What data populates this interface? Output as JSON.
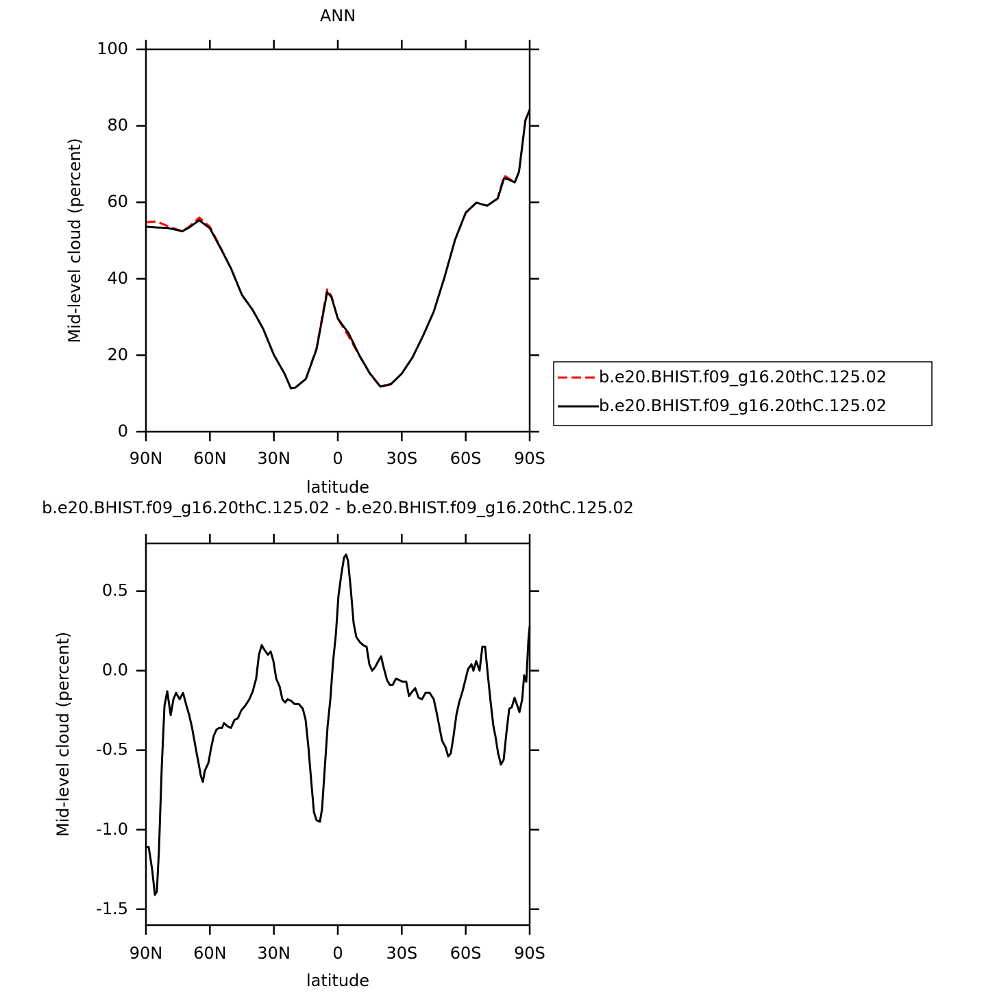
{
  "chart_data": [
    {
      "type": "line",
      "title": "ANN",
      "xlabel": "latitude",
      "ylabel": "Mid-level cloud (percent)",
      "x": [
        90,
        85,
        80,
        75,
        73,
        70,
        65,
        60,
        55,
        50,
        45,
        40,
        35,
        30,
        25,
        22,
        20,
        15,
        10,
        5,
        3,
        0,
        -5,
        -10,
        -15,
        -20,
        -25,
        -30,
        -35,
        -40,
        -45,
        -50,
        -55,
        -60,
        -65,
        -70,
        -75,
        -78,
        -80,
        -83,
        -85,
        -88,
        -90
      ],
      "series": [
        {
          "name": "b.e20.BHIST.f09_g16.20thC.125.02",
          "color": "#ff0000",
          "line_style": "dashed",
          "values": [
            54.8,
            55.0,
            53.8,
            52.8,
            52.5,
            53.5,
            56.0,
            53.6,
            48.2,
            42.5,
            35.8,
            31.9,
            26.9,
            20.1,
            15.2,
            11.4,
            11.5,
            13.8,
            21.8,
            37.2,
            35.5,
            29.6,
            25.0,
            20.0,
            15.2,
            11.7,
            12.4,
            15.2,
            19.4,
            25.1,
            31.4,
            40.3,
            50.2,
            57.2,
            59.9,
            59.1,
            61.0,
            67.0,
            66.3,
            65.2,
            68.0,
            81.3,
            84.2
          ]
        },
        {
          "name": "b.e20.BHIST.f09_g16.20thC.125.02",
          "color": "#000000",
          "line_style": "solid",
          "values": [
            53.6,
            53.4,
            53.3,
            52.7,
            52.4,
            53.3,
            55.3,
            53.2,
            48.0,
            42.6,
            35.8,
            31.9,
            26.9,
            20.1,
            15.2,
            11.3,
            11.5,
            13.8,
            21.5,
            36.5,
            35.2,
            29.6,
            25.8,
            20.1,
            15.3,
            11.8,
            12.5,
            15.2,
            19.4,
            25.1,
            31.4,
            40.3,
            50.2,
            57.3,
            59.9,
            59.1,
            61.0,
            66.3,
            66.0,
            65.2,
            68.0,
            81.5,
            84.2
          ]
        }
      ],
      "xlim": [
        90,
        -90
      ],
      "xticks": [
        {
          "value": 90,
          "label": "90N"
        },
        {
          "value": 60,
          "label": "60N"
        },
        {
          "value": 30,
          "label": "30N"
        },
        0,
        {
          "value": -30,
          "label": "30S"
        },
        {
          "value": -60,
          "label": "60S"
        },
        {
          "value": -90,
          "label": "90S"
        }
      ],
      "ylim": [
        0,
        100
      ],
      "yticks": [
        0,
        20,
        40,
        60,
        80,
        100
      ],
      "legend": "right"
    },
    {
      "type": "line",
      "title": "b.e20.BHIST.f09_g16.20thC.125.02 - b.e20.BHIST.f09_g16.20thC.125.02",
      "xlabel": "latitude",
      "ylabel": "Mid-level cloud (percent)",
      "x": [
        90,
        88.7,
        87.1,
        85.8,
        84.9,
        83.9,
        82.6,
        81.3,
        80.0,
        78.4,
        77.1,
        75.9,
        74.2,
        72.6,
        71.0,
        69.7,
        68.5,
        66.2,
        65.2,
        64.3,
        63.3,
        62.4,
        60.7,
        59.5,
        58.2,
        56.9,
        55.6,
        54.3,
        53.4,
        51.7,
        50.1,
        48.5,
        46.9,
        45.3,
        43.4,
        41.5,
        39.9,
        38.3,
        37.0,
        35.7,
        34.4,
        32.8,
        31.5,
        30.2,
        28.9,
        27.3,
        26.0,
        24.7,
        23.5,
        21.9,
        20.3,
        18.3,
        16.4,
        15.1,
        13.8,
        12.5,
        11.2,
        10.0,
        8.4,
        7.4,
        6.1,
        4.8,
        3.5,
        2.2,
        0.9,
        -0.3,
        -1.6,
        -2.9,
        -3.9,
        -4.8,
        -6.1,
        -7.4,
        -8.7,
        -10.3,
        -11.9,
        -13.5,
        -14.8,
        -16.1,
        -17.4,
        -19.0,
        -20.3,
        -21.5,
        -23.1,
        -24.4,
        -25.7,
        -27.3,
        -28.9,
        -30.5,
        -32.1,
        -33.4,
        -35.0,
        -36.3,
        -37.9,
        -39.5,
        -41.1,
        -43.1,
        -45.0,
        -46.3,
        -47.6,
        -48.9,
        -50.5,
        -51.8,
        -53.0,
        -54.3,
        -55.6,
        -56.9,
        -58.5,
        -59.8,
        -61.1,
        -62.7,
        -63.6,
        -64.9,
        -66.5,
        -67.8,
        -69.1,
        -70.4,
        -71.7,
        -73.0,
        -73.9,
        -75.2,
        -76.5,
        -77.8,
        -79.1,
        -80.4,
        -81.6,
        -82.9,
        -84.2,
        -85.2,
        -86.5,
        -87.4,
        -88.4,
        -89.4,
        -90
      ],
      "series": [
        {
          "name": null,
          "color": "#000000",
          "line_style": "solid",
          "values": [
            -1.11,
            -1.11,
            -1.25,
            -1.41,
            -1.39,
            -1.13,
            -0.61,
            -0.22,
            -0.13,
            -0.28,
            -0.18,
            -0.14,
            -0.18,
            -0.14,
            -0.22,
            -0.28,
            -0.35,
            -0.52,
            -0.59,
            -0.66,
            -0.7,
            -0.63,
            -0.58,
            -0.49,
            -0.41,
            -0.37,
            -0.36,
            -0.36,
            -0.33,
            -0.35,
            -0.36,
            -0.31,
            -0.3,
            -0.25,
            -0.22,
            -0.18,
            -0.13,
            -0.05,
            0.1,
            0.16,
            0.13,
            0.1,
            0.12,
            0.06,
            -0.05,
            -0.1,
            -0.18,
            -0.2,
            -0.18,
            -0.19,
            -0.21,
            -0.21,
            -0.24,
            -0.31,
            -0.48,
            -0.69,
            -0.89,
            -0.94,
            -0.95,
            -0.87,
            -0.61,
            -0.35,
            -0.18,
            0.06,
            0.23,
            0.47,
            0.6,
            0.71,
            0.73,
            0.69,
            0.51,
            0.3,
            0.21,
            0.18,
            0.16,
            0.15,
            0.04,
            0.0,
            0.02,
            0.06,
            0.09,
            0.02,
            -0.06,
            -0.09,
            -0.09,
            -0.05,
            -0.06,
            -0.07,
            -0.07,
            -0.16,
            -0.13,
            -0.11,
            -0.17,
            -0.18,
            -0.14,
            -0.14,
            -0.18,
            -0.26,
            -0.35,
            -0.44,
            -0.48,
            -0.54,
            -0.52,
            -0.41,
            -0.28,
            -0.2,
            -0.13,
            -0.06,
            0.01,
            0.04,
            0.0,
            0.06,
            0.0,
            0.15,
            0.15,
            -0.03,
            -0.2,
            -0.35,
            -0.41,
            -0.52,
            -0.59,
            -0.56,
            -0.39,
            -0.24,
            -0.23,
            -0.17,
            -0.22,
            -0.26,
            -0.18,
            -0.03,
            -0.07,
            0.19,
            0.28
          ]
        }
      ],
      "xlim": [
        90,
        -90
      ],
      "xticks": [
        {
          "value": 90,
          "label": "90N"
        },
        {
          "value": 60,
          "label": "60N"
        },
        {
          "value": 30,
          "label": "30N"
        },
        0,
        {
          "value": -30,
          "label": "30S"
        },
        {
          "value": -60,
          "label": "60S"
        },
        {
          "value": -90,
          "label": "90S"
        }
      ],
      "ylim": [
        -1.6,
        0.8
      ],
      "yticks": [
        -1.5,
        {
          "value": -1,
          "label": "-1.0"
        },
        -0.5,
        {
          "value": 0,
          "label": "0.0"
        },
        0.5
      ]
    }
  ]
}
